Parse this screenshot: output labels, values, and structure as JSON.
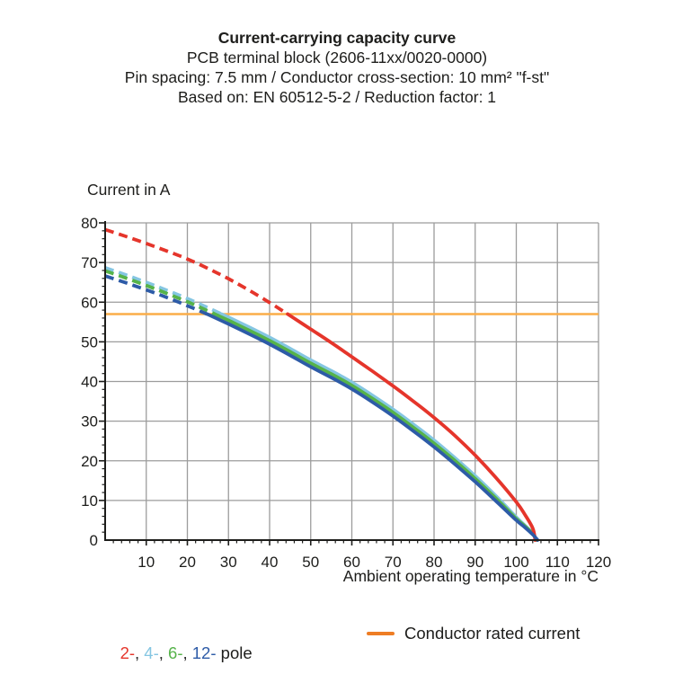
{
  "title_block": {
    "line1": "Current-carrying capacity curve",
    "line2": "PCB terminal block (2606-11xx/0020-0000)",
    "line3": "Pin spacing: 7.5 mm / Conductor cross-section: 10 mm² \"f-st\"",
    "line4": "Based on: EN 60512-5-2 / Reduction factor: 1"
  },
  "chart_data": {
    "type": "line",
    "title": "Current-carrying capacity curve",
    "ylabel": "Current in A",
    "xlabel": "Ambient operating temperature in °C",
    "xlim": [
      0,
      120
    ],
    "ylim": [
      0,
      80
    ],
    "x_ticks": [
      10,
      20,
      30,
      40,
      50,
      60,
      70,
      80,
      90,
      100,
      110,
      120
    ],
    "y_ticks": [
      0,
      10,
      20,
      30,
      40,
      50,
      60,
      70,
      80
    ],
    "minor_tick_step": 2,
    "grid": true,
    "grid_color": "#9c9c9c",
    "axis_color": "#1d1d1b",
    "rated_current": 57,
    "rated_line_color": "#fbad49",
    "line_style_note": "curves are dashed above the conductor rated current (57 A) and solid below it",
    "series": [
      {
        "name": "2-pole",
        "color": "#e5352b",
        "points": [
          [
            0,
            78.3
          ],
          [
            5,
            76.6
          ],
          [
            10,
            74.8
          ],
          [
            15,
            72.9
          ],
          [
            20,
            70.9
          ],
          [
            25,
            68.5
          ],
          [
            30,
            65.9
          ],
          [
            35,
            63.0
          ],
          [
            40,
            59.9
          ],
          [
            45,
            56.6
          ],
          [
            50,
            53.2
          ],
          [
            55,
            49.8
          ],
          [
            60,
            46.2
          ],
          [
            65,
            42.6
          ],
          [
            70,
            38.9
          ],
          [
            75,
            35.0
          ],
          [
            80,
            30.9
          ],
          [
            85,
            26.4
          ],
          [
            90,
            21.4
          ],
          [
            95,
            15.8
          ],
          [
            100,
            9.6
          ],
          [
            102,
            6.6
          ],
          [
            104,
            3.0
          ],
          [
            104.6,
            0
          ]
        ]
      },
      {
        "name": "4-pole",
        "color": "#85c6e2",
        "points": [
          [
            0,
            68.7
          ],
          [
            5,
            66.9
          ],
          [
            10,
            65.0
          ],
          [
            15,
            63.0
          ],
          [
            20,
            60.9
          ],
          [
            25,
            58.6
          ],
          [
            30,
            56.2
          ],
          [
            35,
            53.7
          ],
          [
            40,
            51.1
          ],
          [
            45,
            48.3
          ],
          [
            50,
            45.4
          ],
          [
            55,
            42.7
          ],
          [
            60,
            39.8
          ],
          [
            65,
            36.5
          ],
          [
            70,
            33.0
          ],
          [
            75,
            29.2
          ],
          [
            80,
            25.2
          ],
          [
            85,
            20.8
          ],
          [
            90,
            16.2
          ],
          [
            95,
            11.2
          ],
          [
            100,
            5.8
          ],
          [
            102,
            3.8
          ],
          [
            104,
            1.7
          ],
          [
            104.9,
            0
          ]
        ]
      },
      {
        "name": "6-pole",
        "color": "#56b34a",
        "points": [
          [
            0,
            67.9
          ],
          [
            5,
            66.1
          ],
          [
            10,
            64.2
          ],
          [
            15,
            62.2
          ],
          [
            20,
            60.1
          ],
          [
            25,
            57.8
          ],
          [
            30,
            55.4
          ],
          [
            35,
            52.9
          ],
          [
            40,
            50.3
          ],
          [
            45,
            47.5
          ],
          [
            50,
            44.6
          ],
          [
            55,
            41.9
          ],
          [
            60,
            39.0
          ],
          [
            65,
            35.7
          ],
          [
            70,
            32.2
          ],
          [
            75,
            28.4
          ],
          [
            80,
            24.4
          ],
          [
            85,
            20.1
          ],
          [
            90,
            15.5
          ],
          [
            95,
            10.6
          ],
          [
            100,
            5.4
          ],
          [
            102,
            3.6
          ],
          [
            104,
            1.6
          ],
          [
            105,
            0
          ]
        ]
      },
      {
        "name": "12-pole",
        "color": "#2d5ba7",
        "points": [
          [
            0,
            66.6
          ],
          [
            5,
            64.9
          ],
          [
            10,
            63.1
          ],
          [
            15,
            61.2
          ],
          [
            20,
            59.1
          ],
          [
            25,
            56.9
          ],
          [
            30,
            54.5
          ],
          [
            35,
            52.0
          ],
          [
            40,
            49.4
          ],
          [
            45,
            46.6
          ],
          [
            50,
            43.7
          ],
          [
            55,
            41.0
          ],
          [
            60,
            38.1
          ],
          [
            65,
            34.8
          ],
          [
            70,
            31.3
          ],
          [
            75,
            27.5
          ],
          [
            80,
            23.5
          ],
          [
            85,
            19.2
          ],
          [
            90,
            14.7
          ],
          [
            95,
            9.9
          ],
          [
            100,
            5.0
          ],
          [
            102,
            3.3
          ],
          [
            104,
            1.4
          ],
          [
            105.2,
            0
          ]
        ]
      },
      {
        "name": "Conductor rated current",
        "type": "hline",
        "value": 57,
        "color": "#fbad49"
      }
    ],
    "legend_position": "bottom"
  },
  "legend": {
    "pole_items": [
      {
        "label": "2-",
        "color": "#e5352b"
      },
      {
        "label": "4-",
        "color": "#85c6e2"
      },
      {
        "label": "6-",
        "color": "#56b34a"
      },
      {
        "label": "12-",
        "color": "#2d5ba7"
      }
    ],
    "separator": ", ",
    "pole_suffix": "pole",
    "rated": {
      "label": "Conductor rated current",
      "swatch_color": "#ee7d24"
    }
  }
}
